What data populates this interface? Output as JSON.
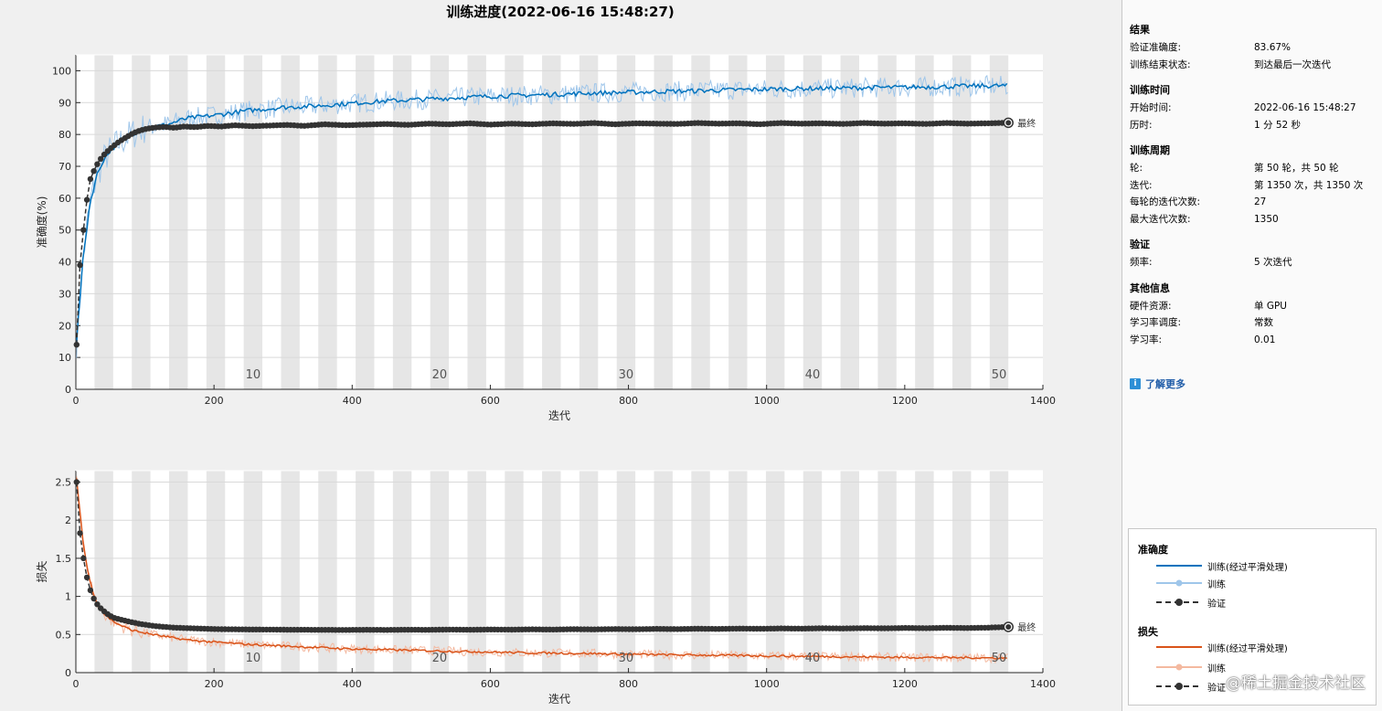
{
  "title": "训练进度(2022-06-16 15:48:27)",
  "colors": {
    "train_acc_smooth": "#0072bd",
    "train_acc_raw": "#9fc6ea",
    "train_loss_smooth": "#d95319",
    "train_loss_raw": "#f4b9a0",
    "validation": "#333333",
    "epoch_band": "#e6e6e6"
  },
  "final_label": "最终",
  "epoch_labels": [
    "10",
    "20",
    "30",
    "40",
    "50"
  ],
  "chart_data": [
    {
      "type": "line",
      "name": "accuracy",
      "xlabel": "迭代",
      "ylabel": "准确度(%)",
      "xlim": [
        0,
        1400
      ],
      "ylim": [
        0,
        105
      ],
      "xticks": [
        0,
        200,
        400,
        600,
        800,
        1000,
        1200,
        1400
      ],
      "yticks": [
        0,
        10,
        20,
        30,
        40,
        50,
        60,
        70,
        80,
        90,
        100
      ],
      "grid": true,
      "iterations_per_epoch": 27,
      "max_iterations": 1350,
      "series": [
        {
          "name": "训练(经过平滑处理)",
          "role": "smoothed",
          "x": [
            1,
            10,
            20,
            30,
            40,
            50,
            60,
            80,
            100,
            130,
            160,
            200,
            250,
            300,
            350,
            400,
            450,
            500,
            550,
            600,
            650,
            700,
            750,
            800,
            850,
            900,
            950,
            1000,
            1050,
            1100,
            1150,
            1200,
            1250,
            1300,
            1350
          ],
          "y": [
            15,
            40,
            58,
            67,
            72,
            75,
            77,
            80,
            82,
            83,
            85,
            86,
            87.5,
            88.5,
            89,
            89.8,
            90.5,
            91,
            91.5,
            92,
            92.3,
            92.6,
            93,
            93.2,
            93.5,
            93.7,
            94,
            94.2,
            94.4,
            94.5,
            94.7,
            94.8,
            95,
            95.2,
            95.3
          ]
        },
        {
          "name": "训练",
          "role": "raw",
          "noise_amplitude": 3.2,
          "source": "smoothed"
        },
        {
          "name": "验证",
          "x": [
            1,
            6,
            11,
            16,
            21,
            27,
            33,
            40,
            47,
            55,
            63,
            72,
            82,
            92,
            103,
            115,
            128,
            142,
            157,
            173,
            190,
            210,
            230,
            255,
            280,
            305,
            330,
            360,
            390,
            420,
            450,
            480,
            510,
            540,
            570,
            600,
            630,
            660,
            690,
            720,
            750,
            780,
            810,
            840,
            870,
            900,
            930,
            960,
            990,
            1020,
            1050,
            1080,
            1110,
            1140,
            1170,
            1200,
            1230,
            1260,
            1290,
            1320,
            1350
          ],
          "y": [
            14,
            39,
            50,
            59.5,
            66,
            69,
            71.5,
            73.5,
            75,
            76.5,
            77.8,
            79,
            80.3,
            81.2,
            81.8,
            82.2,
            82.4,
            82.1,
            82.5,
            82.3,
            82.7,
            82.5,
            82.9,
            82.6,
            82.8,
            83.0,
            82.7,
            83.2,
            82.9,
            83.1,
            83.3,
            83.0,
            83.4,
            83.2,
            83.5,
            83.1,
            83.4,
            83.2,
            83.5,
            83.3,
            83.6,
            83.2,
            83.5,
            83.4,
            83.3,
            83.6,
            83.4,
            83.5,
            83.2,
            83.6,
            83.4,
            83.5,
            83.3,
            83.6,
            83.4,
            83.5,
            83.3,
            83.6,
            83.4,
            83.5,
            83.67
          ]
        }
      ]
    },
    {
      "type": "line",
      "name": "loss",
      "xlabel": "迭代",
      "ylabel": "损失",
      "xlim": [
        0,
        1400
      ],
      "ylim": [
        0,
        2.65
      ],
      "xticks": [
        0,
        200,
        400,
        600,
        800,
        1000,
        1200,
        1400
      ],
      "yticks": [
        0,
        0.5,
        1,
        1.5,
        2,
        2.5
      ],
      "grid": true,
      "series": [
        {
          "name": "训练(经过平滑处理)",
          "role": "smoothed",
          "x": [
            1,
            5,
            10,
            15,
            20,
            30,
            40,
            50,
            60,
            80,
            100,
            130,
            160,
            200,
            250,
            300,
            350,
            400,
            450,
            500,
            550,
            600,
            650,
            700,
            750,
            800,
            850,
            900,
            950,
            1000,
            1050,
            1100,
            1150,
            1200,
            1250,
            1300,
            1350
          ],
          "y": [
            2.55,
            2.2,
            1.75,
            1.45,
            1.2,
            0.92,
            0.78,
            0.7,
            0.64,
            0.56,
            0.52,
            0.47,
            0.43,
            0.4,
            0.37,
            0.35,
            0.33,
            0.31,
            0.3,
            0.29,
            0.28,
            0.27,
            0.26,
            0.255,
            0.25,
            0.24,
            0.235,
            0.23,
            0.225,
            0.22,
            0.215,
            0.21,
            0.205,
            0.2,
            0.198,
            0.195,
            0.19
          ]
        },
        {
          "name": "训练",
          "role": "raw",
          "noise_amplitude": 0.06,
          "source": "smoothed"
        },
        {
          "name": "验证",
          "x": [
            1,
            6,
            11,
            16,
            21,
            27,
            33,
            40,
            47,
            55,
            63,
            72,
            82,
            92,
            103,
            115,
            128,
            142,
            157,
            173,
            190,
            210,
            230,
            255,
            280,
            305,
            330,
            360,
            390,
            420,
            450,
            480,
            510,
            540,
            570,
            600,
            630,
            660,
            690,
            720,
            750,
            780,
            810,
            840,
            870,
            900,
            930,
            960,
            990,
            1020,
            1050,
            1080,
            1110,
            1140,
            1170,
            1200,
            1230,
            1260,
            1290,
            1320,
            1350
          ],
          "y": [
            2.5,
            1.83,
            1.5,
            1.25,
            1.08,
            0.95,
            0.87,
            0.81,
            0.76,
            0.72,
            0.7,
            0.68,
            0.66,
            0.64,
            0.625,
            0.61,
            0.6,
            0.59,
            0.585,
            0.58,
            0.575,
            0.57,
            0.568,
            0.566,
            0.565,
            0.563,
            0.562,
            0.561,
            0.56,
            0.562,
            0.56,
            0.563,
            0.561,
            0.565,
            0.562,
            0.566,
            0.564,
            0.568,
            0.565,
            0.57,
            0.567,
            0.572,
            0.569,
            0.574,
            0.571,
            0.576,
            0.573,
            0.578,
            0.575,
            0.58,
            0.577,
            0.582,
            0.579,
            0.584,
            0.581,
            0.586,
            0.583,
            0.588,
            0.585,
            0.59,
            0.6
          ]
        }
      ]
    }
  ],
  "side": {
    "sections": [
      {
        "title": "结果",
        "rows": [
          {
            "k": "验证准确度:",
            "v": "83.67%"
          },
          {
            "k": "训练结束状态:",
            "v": "到达最后一次迭代"
          }
        ]
      },
      {
        "title": "训练时间",
        "rows": [
          {
            "k": "开始时间:",
            "v": "2022-06-16 15:48:27"
          },
          {
            "k": "历时:",
            "v": "1 分 52 秒"
          }
        ]
      },
      {
        "title": "训练周期",
        "rows": [
          {
            "k": "轮:",
            "v": "第 50 轮，共 50 轮"
          },
          {
            "k": "迭代:",
            "v": "第 1350 次，共 1350 次"
          },
          {
            "k": "每轮的迭代次数:",
            "v": "27"
          },
          {
            "k": "最大迭代次数:",
            "v": "1350"
          }
        ]
      },
      {
        "title": "验证",
        "rows": [
          {
            "k": "频率:",
            "v": "5 次迭代"
          }
        ]
      },
      {
        "title": "其他信息",
        "rows": [
          {
            "k": "硬件资源:",
            "v": "单 GPU"
          },
          {
            "k": "学习率调度:",
            "v": "常数"
          },
          {
            "k": "学习率:",
            "v": "0.01"
          }
        ]
      }
    ],
    "learn_more": "了解更多",
    "learn_more_icon": "info-icon"
  },
  "legend": {
    "acc_title": "准确度",
    "loss_title": "损失",
    "smoothed": "训练(经过平滑处理)",
    "raw": "训练",
    "validation": "验证"
  },
  "watermark": "@稀土掘金技术社区"
}
